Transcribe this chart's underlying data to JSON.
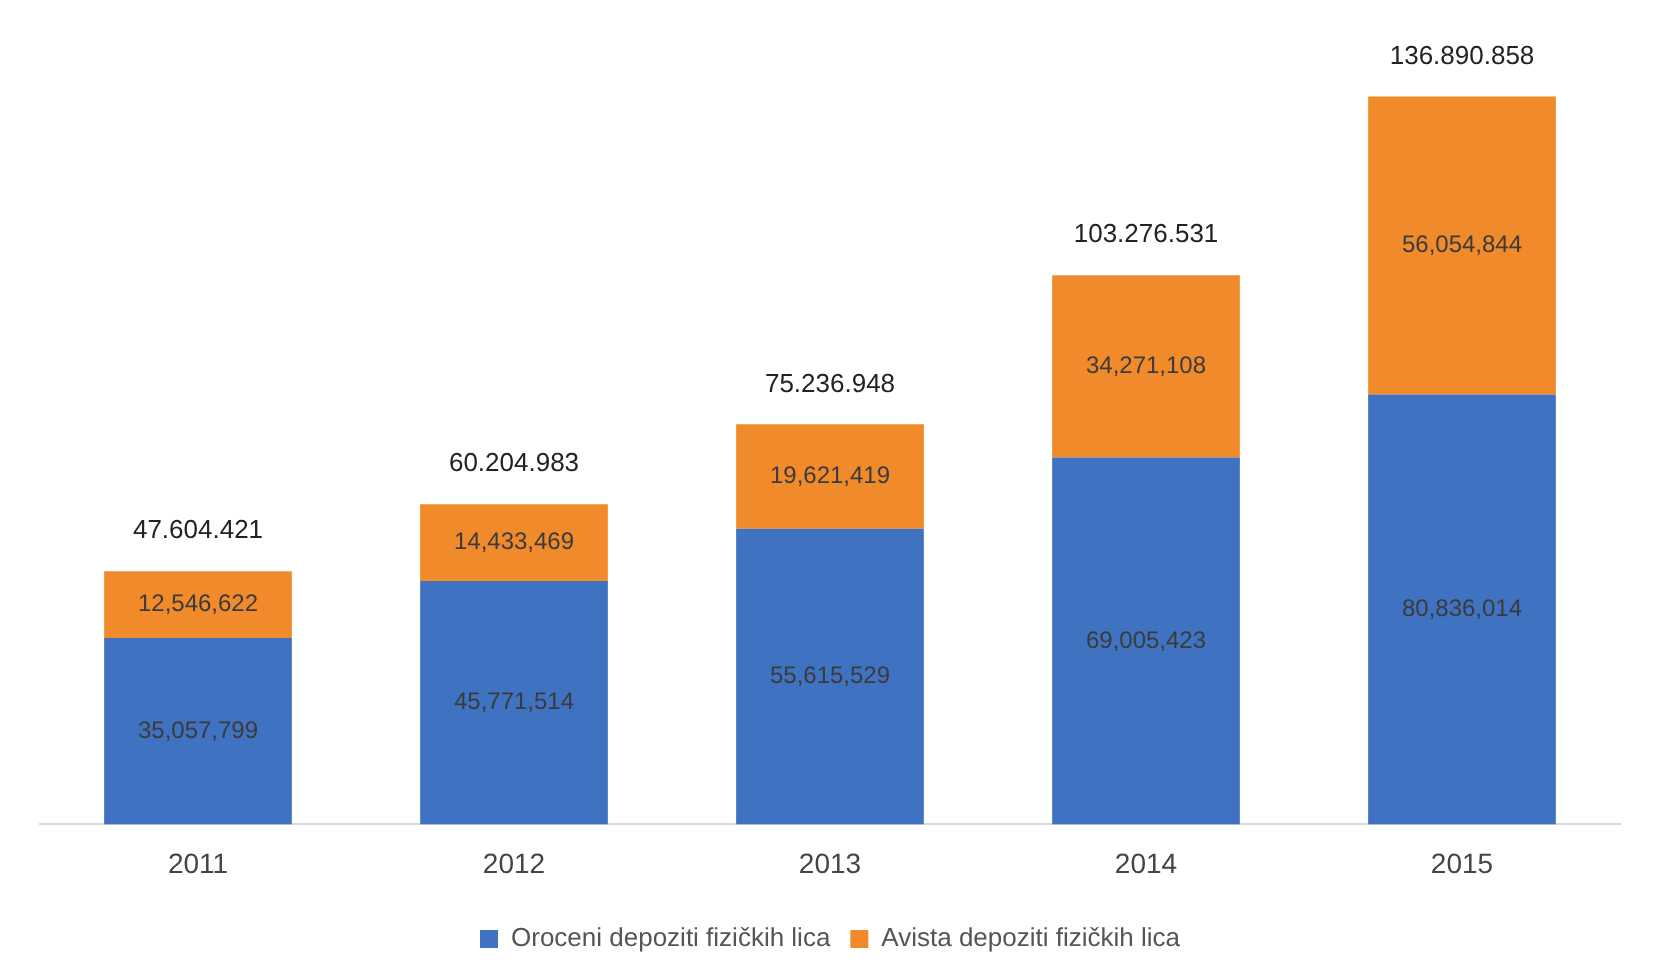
{
  "chart_data": {
    "type": "bar",
    "stacked": true,
    "categories": [
      "2011",
      "2012",
      "2013",
      "2014",
      "2015"
    ],
    "series": [
      {
        "name": "Oroceni depoziti fizičkih lica",
        "color": "#3f72c0",
        "values": [
          35057799,
          45771514,
          55615529,
          69005423,
          80836014
        ],
        "value_labels": [
          "35,057,799",
          "45,771,514",
          "55,615,529",
          "69,005,423",
          "80,836,014"
        ]
      },
      {
        "name": "Avista depoziti fizičkih lica",
        "color": "#f08a2a",
        "values": [
          12546622,
          14433469,
          19621419,
          34271108,
          56054844
        ],
        "value_labels": [
          "12,546,622",
          "14,433,469",
          "19,621,419",
          "34,271,108",
          "56,054,844"
        ]
      }
    ],
    "totals": [
      "47.604.421",
      "60.204.983",
      "75.236.948",
      "103.276.531",
      "136.890.858"
    ],
    "grid": false,
    "legend": "bottom"
  }
}
